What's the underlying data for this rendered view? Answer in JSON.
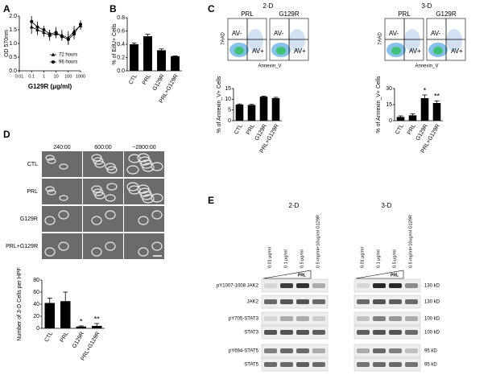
{
  "figure": {
    "panels": [
      "A",
      "B",
      "C",
      "D",
      "E"
    ]
  },
  "flow": {
    "conditions": [
      "2-D",
      "3-D"
    ],
    "samples": [
      "PRL",
      "G129R"
    ],
    "y_label": "7AAD",
    "x_label": "Annexin_V",
    "gates": [
      "AV-",
      "AV+"
    ]
  },
  "timelapse": {
    "times": [
      "240:00",
      "600:00",
      "~2800:00"
    ],
    "rows": [
      "CTL",
      "PRL",
      "G129R",
      "PRL+G129R"
    ]
  },
  "blot": {
    "conditions": [
      "2-D",
      "3-D"
    ],
    "lanes": [
      "0.01 μg/ml",
      "0.1 μg/ml",
      "0.5 μg/ml",
      "0.5 mg/ml+10ug/ml G129R"
    ],
    "treatment": "PRL",
    "rows": [
      {
        "label": "pY1007-1008 JAK2",
        "size": "130 kD"
      },
      {
        "label": "JAK2",
        "size": "130 kD"
      },
      {
        "label": "pY705-STAT3",
        "size": "100 kD"
      },
      {
        "label": "STAT3",
        "size": "100 kD"
      },
      {
        "label": "pY694-STAT5",
        "size": "95 kD"
      },
      {
        "label": "STAT5",
        "size": "95 kD"
      }
    ]
  },
  "chart_data": [
    {
      "type": "line",
      "xscale": "log",
      "x_label": "G129R (μg/ml)",
      "y_label": "OD 570nm",
      "x": [
        0.1,
        0.3,
        1,
        3,
        10,
        30,
        100,
        300,
        1000
      ],
      "xlim": [
        0.01,
        1000
      ],
      "xticks": [
        0.01,
        0.1,
        1,
        10,
        100,
        1000
      ],
      "ylim": [
        0,
        2
      ],
      "yticks": [
        {
          "value": 0,
          "label": "0.0"
        },
        0.5,
        {
          "value": 1,
          "label": "1.0"
        },
        1.5,
        {
          "value": 2,
          "label": "2.0"
        }
      ],
      "legend": "lower right",
      "series": [
        {
          "name": "72 hours",
          "color": "#000000",
          "marker": "triangle",
          "values": [
            1.6,
            1.5,
            1.4,
            1.3,
            1.35,
            1.3,
            1.2,
            1.45,
            1.65
          ],
          "errors": [
            0.25,
            0.2,
            0.15,
            0.2,
            0.15,
            0.2,
            0.25,
            0.2,
            0.15
          ]
        },
        {
          "name": "96 hours",
          "color": "#000000",
          "marker": "circle",
          "values": [
            1.8,
            1.6,
            1.5,
            1.35,
            1.4,
            1.25,
            1.15,
            1.35,
            1.7
          ],
          "errors": [
            0.2,
            0.2,
            0.15,
            0.15,
            0.2,
            0.15,
            0.2,
            0.2,
            0.15
          ]
        }
      ]
    },
    {
      "type": "bar",
      "y_label": "% of EdU+ Cells",
      "categories": [
        "CTL",
        "PRL",
        "G129R",
        "PRL+G129R"
      ],
      "values": [
        0.4,
        0.52,
        0.31,
        0.22
      ],
      "errors": [
        0.02,
        0.03,
        0.02,
        0.005
      ],
      "color": "#000000",
      "ylim": [
        0,
        0.8
      ],
      "yticks": [
        {
          "value": 0,
          "label": "0.0"
        },
        0.2,
        0.4,
        0.6,
        0.8
      ]
    },
    {
      "type": "bar",
      "y_label": "% of Annexin_V+ Cells",
      "categories": [
        "CTL",
        "PRL",
        "G129R",
        "PRL+G129R"
      ],
      "values": [
        7.5,
        7.3,
        11.2,
        10.5
      ],
      "errors": [
        0.3,
        0.3,
        0.3,
        0.4
      ],
      "color": "#000000",
      "ylim": [
        0,
        15
      ],
      "yticks": [
        0,
        5,
        10,
        15
      ]
    },
    {
      "type": "bar",
      "y_label": "% of Annexin_V+ Cells",
      "categories": [
        "CTL",
        "PRL",
        "G129R",
        "PRL+G129R"
      ],
      "values": [
        3.5,
        5,
        21,
        16.5
      ],
      "errors": [
        1,
        1.5,
        3,
        2
      ],
      "color": "#000000",
      "annotations": [
        null,
        null,
        "*",
        "**"
      ],
      "ylim": [
        0,
        30
      ],
      "yticks": [
        0,
        15,
        30
      ]
    },
    {
      "type": "bar",
      "y_label": "Number of 3-D Cells per HPF",
      "categories": [
        "CTL",
        "PRL",
        "G129R",
        "PRL+G129R"
      ],
      "values": [
        42,
        45,
        3,
        4
      ],
      "errors": [
        8,
        15,
        1,
        4
      ],
      "color": "#000000",
      "annotations": [
        null,
        null,
        "*",
        "**"
      ],
      "ylim": [
        0,
        80
      ],
      "yticks": [
        0,
        20,
        40,
        60,
        80
      ]
    }
  ]
}
